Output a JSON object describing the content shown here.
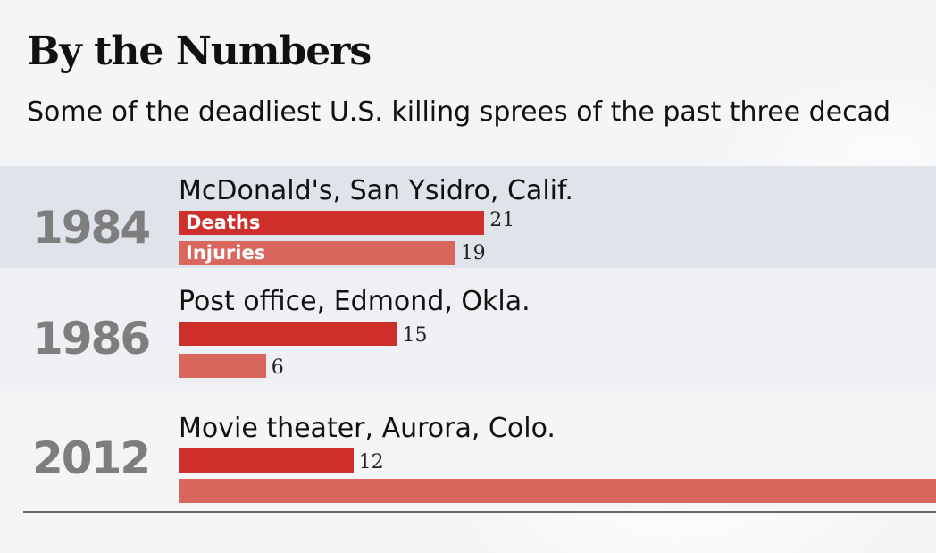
{
  "chart_data": {
    "type": "bar",
    "title": "By the Numbers",
    "subtitle": "Some of the deadliest U.S. killing sprees of the past three decad",
    "legend": [
      "Deaths",
      "Injuries"
    ],
    "max_value": 40,
    "events": [
      {
        "year": "1984",
        "place": "McDonald's",
        "location": ", San Ysidro, Calif.",
        "deaths": 21,
        "injuries": 19,
        "deaths_label": "21",
        "injuries_label": "19",
        "injuries_shown": "19"
      },
      {
        "year": "1986",
        "place": "Post office",
        "location": ", Edmond, Okla.",
        "deaths": 15,
        "injuries": 6,
        "deaths_label": "15",
        "injuries_label": "6",
        "injuries_shown": "6"
      },
      {
        "year": "2012",
        "place": "Movie theater",
        "location": ", Aurora, Colo.",
        "deaths": 12,
        "injuries": 58,
        "deaths_label": "12",
        "injuries_label": "",
        "injuries_shown": ""
      }
    ]
  },
  "colors": {
    "deaths": "#cf2f2a",
    "injuries": "#d9675e"
  }
}
